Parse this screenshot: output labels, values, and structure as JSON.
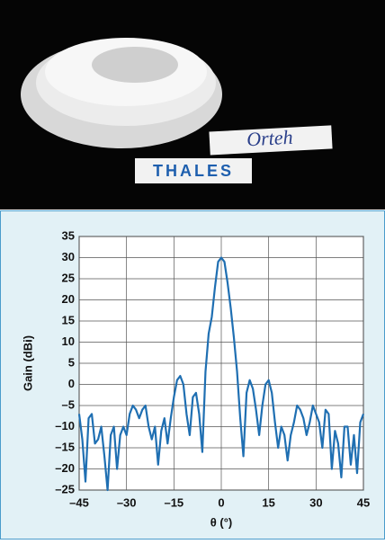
{
  "photo": {
    "labels": [
      "Orteh",
      "THALES"
    ]
  },
  "chart_data": {
    "type": "line",
    "xlabel": "θ (°)",
    "ylabel": "Gain (dBi)",
    "x": [
      -45,
      -44,
      -43,
      -42,
      -41,
      -40,
      -39,
      -38,
      -37,
      -36,
      -35,
      -34,
      -33,
      -32,
      -31,
      -30,
      -29,
      -28,
      -27,
      -26,
      -25,
      -24,
      -23,
      -22,
      -21,
      -20,
      -19,
      -18,
      -17,
      -16,
      -15,
      -14,
      -13,
      -12,
      -11,
      -10,
      -9,
      -8,
      -7,
      -6,
      -5,
      -4,
      -3,
      -2,
      -1,
      0,
      1,
      2,
      3,
      4,
      5,
      6,
      7,
      8,
      9,
      10,
      11,
      12,
      13,
      14,
      15,
      16,
      17,
      18,
      19,
      20,
      21,
      22,
      23,
      24,
      25,
      26,
      27,
      28,
      29,
      30,
      31,
      32,
      33,
      34,
      35,
      36,
      37,
      38,
      39,
      40,
      41,
      42,
      43,
      44,
      45
    ],
    "values": [
      -7,
      -13,
      -23,
      -8,
      -7,
      -14,
      -13,
      -10,
      -17,
      -25,
      -12,
      -10,
      -20,
      -12,
      -10,
      -12,
      -7,
      -5,
      -6,
      -8,
      -6,
      -5,
      -10,
      -13,
      -10,
      -19,
      -11,
      -8,
      -14,
      -8,
      -3,
      1,
      2,
      0,
      -7,
      -12,
      -3,
      -2,
      -7,
      -16,
      3,
      12,
      16,
      23,
      29,
      30,
      29,
      24,
      18,
      11,
      3,
      -8,
      -17,
      -2,
      1,
      -1,
      -6,
      -12,
      -5,
      0,
      1,
      -2,
      -9,
      -15,
      -10,
      -12,
      -18,
      -12,
      -9,
      -5,
      -6,
      -8,
      -12,
      -9,
      -5,
      -7,
      -9,
      -15,
      -6,
      -7,
      -20,
      -11,
      -14,
      -22,
      -10,
      -10,
      -19,
      -12,
      -21,
      -9,
      -7
    ],
    "color": "#1f6fb2",
    "xlim": [
      -45,
      45
    ],
    "xticks": [
      {
        "value": -45,
        "label": "–45"
      },
      {
        "value": -30,
        "label": "–30"
      },
      {
        "value": -15,
        "label": "–15"
      },
      0,
      15,
      30,
      45
    ],
    "ylim": [
      -25,
      35
    ],
    "yticks": [
      {
        "value": -25,
        "label": "–25"
      },
      {
        "value": -20,
        "label": "–20"
      },
      {
        "value": -15,
        "label": "–15"
      },
      {
        "value": -10,
        "label": "–10"
      },
      {
        "value": -5,
        "label": "–5"
      },
      0,
      5,
      10,
      15,
      20,
      25,
      30,
      35
    ],
    "grid": true
  }
}
